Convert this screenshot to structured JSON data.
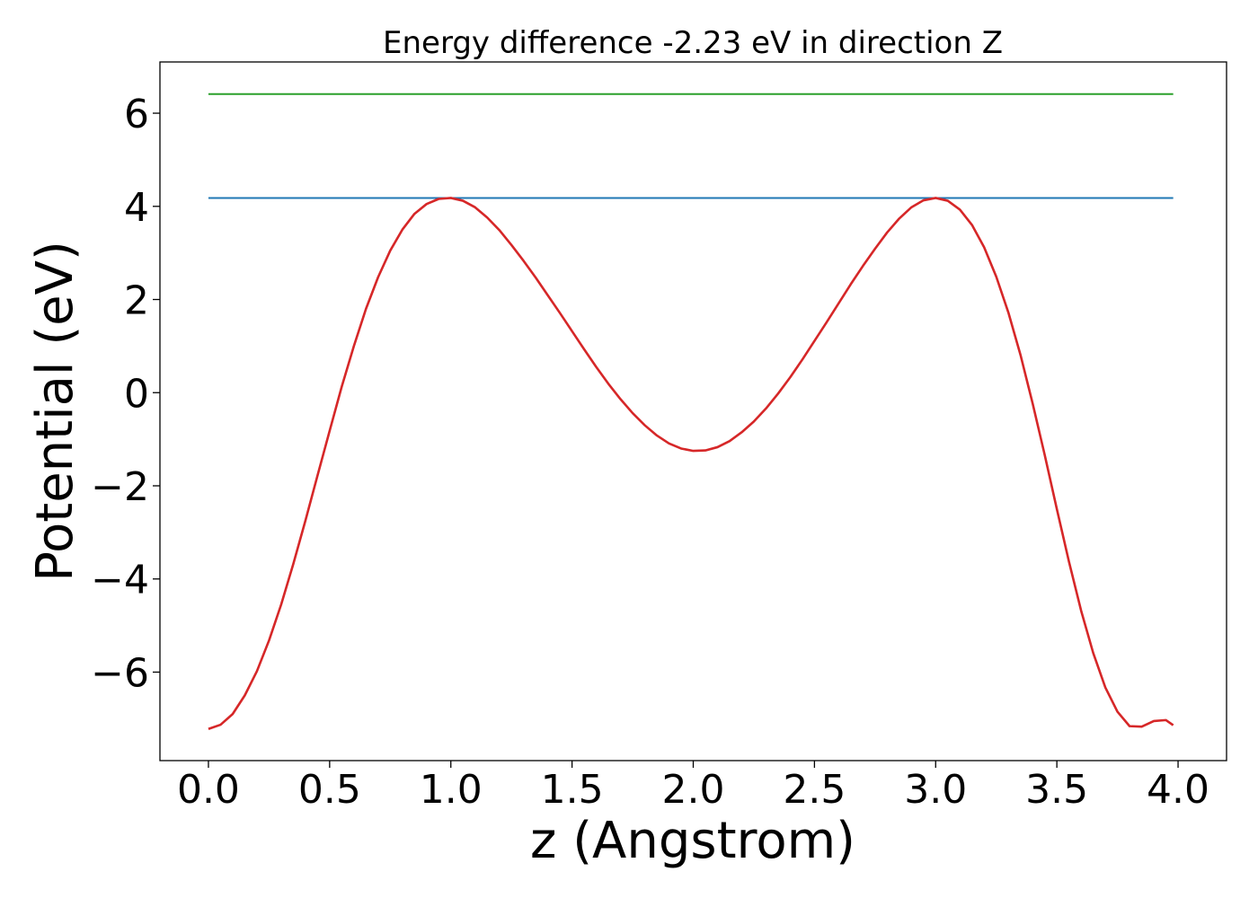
{
  "chart_data": {
    "type": "line",
    "title": "Energy difference -2.23 eV in direction Z",
    "xlabel": "z (Angstrom)",
    "ylabel": "Potential (eV)",
    "xlim": [
      -0.2,
      4.2
    ],
    "ylim": [
      -7.9,
      7.1
    ],
    "x_ticks": [
      0.0,
      0.5,
      1.0,
      1.5,
      2.0,
      2.5,
      3.0,
      3.5,
      4.0
    ],
    "x_tick_labels": [
      "0.0",
      "0.5",
      "1.0",
      "1.5",
      "2.0",
      "2.5",
      "3.0",
      "3.5",
      "4.0"
    ],
    "y_ticks": [
      -6,
      -4,
      -2,
      0,
      2,
      4,
      6
    ],
    "y_tick_labels": [
      "−6",
      "−4",
      "−2",
      "0",
      "2",
      "4",
      "6"
    ],
    "grid": false,
    "series": [
      {
        "color": "#2ca02c",
        "x": [
          0.0,
          3.98
        ],
        "y": [
          6.41,
          6.41
        ]
      },
      {
        "color": "#1f77b4",
        "x": [
          0.0,
          3.98
        ],
        "y": [
          4.18,
          4.18
        ]
      },
      {
        "color": "#d62728",
        "x": [
          0.0,
          0.05,
          0.1,
          0.15,
          0.2,
          0.25,
          0.3,
          0.35,
          0.4,
          0.45,
          0.5,
          0.55,
          0.6,
          0.65,
          0.7,
          0.75,
          0.8,
          0.85,
          0.9,
          0.95,
          1.0,
          1.05,
          1.1,
          1.15,
          1.2,
          1.25,
          1.3,
          1.35,
          1.4,
          1.45,
          1.5,
          1.55,
          1.6,
          1.65,
          1.7,
          1.75,
          1.8,
          1.85,
          1.9,
          1.95,
          2.0,
          2.05,
          2.1,
          2.15,
          2.2,
          2.25,
          2.3,
          2.35,
          2.4,
          2.45,
          2.5,
          2.55,
          2.6,
          2.65,
          2.7,
          2.75,
          2.8,
          2.85,
          2.9,
          2.95,
          3.0,
          3.05,
          3.1,
          3.15,
          3.2,
          3.25,
          3.3,
          3.35,
          3.4,
          3.45,
          3.5,
          3.55,
          3.6,
          3.65,
          3.7,
          3.75,
          3.8,
          3.85,
          3.9,
          3.95,
          3.98
        ],
        "y": [
          -7.22,
          -7.13,
          -6.9,
          -6.5,
          -5.98,
          -5.32,
          -4.55,
          -3.68,
          -2.75,
          -1.78,
          -0.82,
          0.13,
          1.0,
          1.8,
          2.48,
          3.05,
          3.5,
          3.84,
          4.05,
          4.16,
          4.18,
          4.12,
          3.98,
          3.76,
          3.49,
          3.17,
          2.83,
          2.47,
          2.09,
          1.71,
          1.32,
          0.93,
          0.55,
          0.19,
          -0.14,
          -0.44,
          -0.7,
          -0.92,
          -1.09,
          -1.2,
          -1.25,
          -1.24,
          -1.17,
          -1.04,
          -0.85,
          -0.62,
          -0.34,
          -0.02,
          0.33,
          0.71,
          1.11,
          1.51,
          1.92,
          2.33,
          2.72,
          3.09,
          3.44,
          3.74,
          3.98,
          4.13,
          4.18,
          4.12,
          3.93,
          3.6,
          3.12,
          2.49,
          1.72,
          0.81,
          -0.23,
          -1.34,
          -2.5,
          -3.63,
          -4.68,
          -5.59,
          -6.33,
          -6.85,
          -7.16,
          -7.17,
          -7.05,
          -7.03,
          -7.14
        ]
      }
    ]
  }
}
